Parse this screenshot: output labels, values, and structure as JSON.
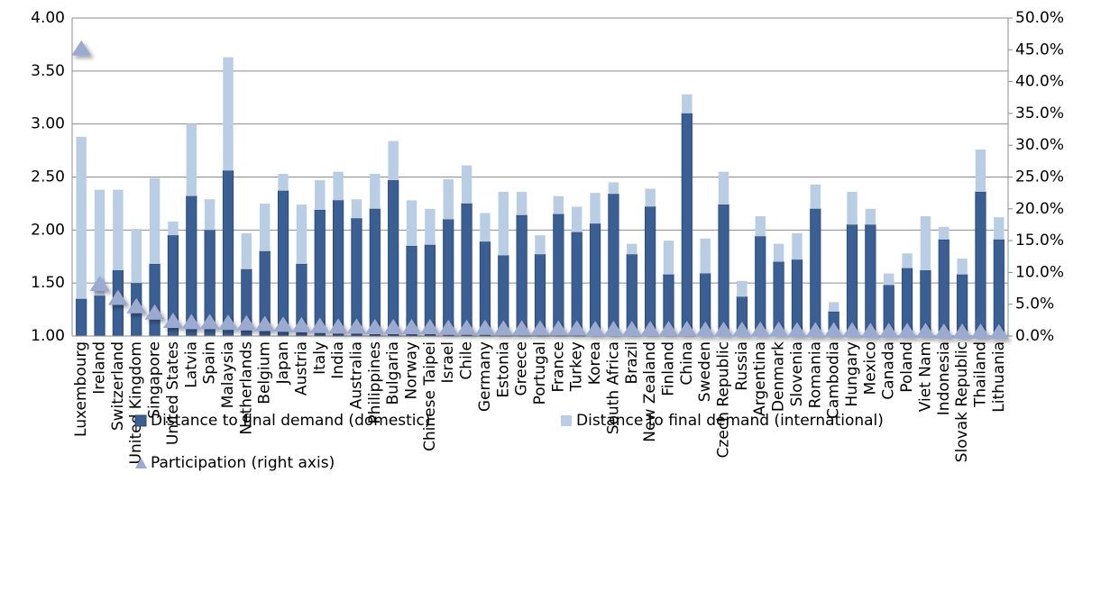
{
  "chart_data": {
    "type": "bar",
    "categories": [
      "Luxembourg",
      "Ireland",
      "Switzerland",
      "United Kingdom",
      "Singapore",
      "United States",
      "Latvia",
      "Spain",
      "Malaysia",
      "Netherlands",
      "Belgium",
      "Japan",
      "Austria",
      "Italy",
      "India",
      "Australia",
      "Philippines",
      "Bulgaria",
      "Norway",
      "Chinese Taipei",
      "Israel",
      "Chile",
      "Germany",
      "Estonia",
      "Greece",
      "Portugal",
      "France",
      "Turkey",
      "Korea",
      "South Africa",
      "Brazil",
      "New Zealand",
      "Finland",
      "China",
      "Sweden",
      "Czech Republic",
      "Russia",
      "Argentina",
      "Denmark",
      "Slovenia",
      "Romania",
      "Cambodia",
      "Hungary",
      "Mexico",
      "Canada",
      "Poland",
      "Viet Nam",
      "Indonesia",
      "Slovak Republic",
      "Thailand",
      "Lithuania"
    ],
    "series": [
      {
        "name": "Distance to final demand (domestic)",
        "color": "#3a5f94",
        "values": [
          1.35,
          1.38,
          1.62,
          1.5,
          1.68,
          1.95,
          2.32,
          2.0,
          2.56,
          1.63,
          1.8,
          2.37,
          1.68,
          2.19,
          2.28,
          2.11,
          2.2,
          2.47,
          1.85,
          1.86,
          2.1,
          2.25,
          1.89,
          1.76,
          2.14,
          1.77,
          2.15,
          1.98,
          2.06,
          2.34,
          1.77,
          2.22,
          1.58,
          3.1,
          1.59,
          2.24,
          1.37,
          1.94,
          1.7,
          1.72,
          2.2,
          1.23,
          2.05,
          2.05,
          1.48,
          1.64,
          1.62,
          1.91,
          1.58,
          2.36,
          1.91
        ]
      },
      {
        "name": "Distance to final demand (international)",
        "color": "#b9cde5",
        "values": [
          1.53,
          1.0,
          0.76,
          0.51,
          0.81,
          0.13,
          0.68,
          0.29,
          1.07,
          0.34,
          0.45,
          0.16,
          0.56,
          0.28,
          0.27,
          0.18,
          0.33,
          0.37,
          0.43,
          0.34,
          0.38,
          0.36,
          0.27,
          0.6,
          0.22,
          0.18,
          0.17,
          0.24,
          0.29,
          0.11,
          0.1,
          0.17,
          0.32,
          0.18,
          0.33,
          0.31,
          0.15,
          0.19,
          0.17,
          0.25,
          0.23,
          0.09,
          0.31,
          0.15,
          0.11,
          0.14,
          0.51,
          0.12,
          0.15,
          0.4,
          0.21
        ]
      },
      {
        "name": "Participation (right axis)",
        "color": "#9aaad0",
        "axis": "y2",
        "values": [
          45,
          8,
          5.8,
          4.5,
          3.5,
          2.2,
          2.0,
          2.0,
          1.9,
          1.8,
          1.7,
          1.6,
          1.5,
          1.4,
          1.3,
          1.3,
          1.2,
          1.2,
          1.2,
          1.2,
          1.1,
          1.1,
          1.1,
          1.0,
          1.0,
          1.0,
          1.0,
          1.0,
          0.9,
          0.9,
          0.9,
          0.9,
          0.9,
          0.9,
          0.8,
          0.8,
          0.8,
          0.8,
          0.8,
          0.7,
          0.7,
          0.7,
          0.7,
          0.6,
          0.6,
          0.6,
          0.6,
          0.5,
          0.5,
          0.5,
          0.4
        ]
      }
    ],
    "ylim": [
      1,
      4
    ],
    "yticks": [
      {
        "value": 1,
        "label": "1.00"
      },
      {
        "value": 1.5,
        "label": "1.50"
      },
      {
        "value": 2,
        "label": "2.00"
      },
      {
        "value": 2.5,
        "label": "2.50"
      },
      {
        "value": 3,
        "label": "3.00"
      },
      {
        "value": 3.5,
        "label": "3.50"
      },
      {
        "value": 4,
        "label": "4.00"
      }
    ],
    "y2lim": [
      0,
      50
    ],
    "y2ticks": [
      {
        "value": 0,
        "label": "0.0%"
      },
      {
        "value": 5,
        "label": "5.0%"
      },
      {
        "value": 10,
        "label": "10.0%"
      },
      {
        "value": 15,
        "label": "15.0%"
      },
      {
        "value": 20,
        "label": "20.0%"
      },
      {
        "value": 25,
        "label": "25.0%"
      },
      {
        "value": 30,
        "label": "30.0%"
      },
      {
        "value": 35,
        "label": "35.0%"
      },
      {
        "value": 40,
        "label": "40.0%"
      },
      {
        "value": 45,
        "label": "45.0%"
      },
      {
        "value": 50,
        "label": "50.0%"
      }
    ],
    "grid": true
  }
}
